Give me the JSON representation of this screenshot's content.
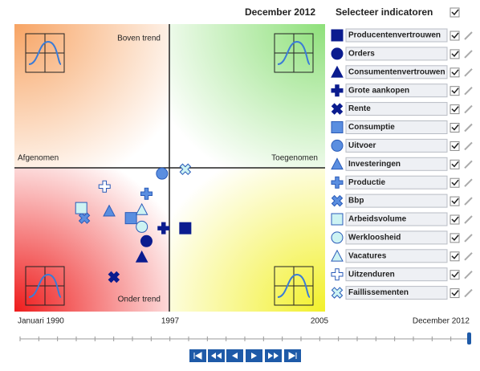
{
  "header": {
    "date": "December 2012",
    "select_title": "Selecteer indicatoren"
  },
  "plot": {
    "xlim": [
      -1,
      1
    ],
    "ylim": [
      -1,
      1
    ],
    "labels": {
      "top": "Boven trend",
      "bottom": "Onder trend",
      "left": "Afgenomen",
      "right": "Toegenomen"
    }
  },
  "indicators": [
    {
      "name": "Producentenvertrouwen",
      "shape": "square",
      "color": "#0b1c8f",
      "x": 0.1,
      "y": -0.42
    },
    {
      "name": "Orders",
      "shape": "circle",
      "color": "#0b1c8f",
      "x": -0.15,
      "y": -0.51
    },
    {
      "name": "Consumentenvertrouwen",
      "shape": "triangle",
      "color": "#0b1c8f",
      "x": -0.18,
      "y": -0.62
    },
    {
      "name": "Grote aankopen",
      "shape": "plus",
      "color": "#0b1c8f",
      "x": -0.04,
      "y": -0.42
    },
    {
      "name": "Rente",
      "shape": "cross",
      "color": "#0b1c8f",
      "x": -0.36,
      "y": -0.76
    },
    {
      "name": "Consumptie",
      "shape": "square",
      "color": "#5a8ee0",
      "x": -0.25,
      "y": -0.35
    },
    {
      "name": "Uitvoer",
      "shape": "circle",
      "color": "#5a8ee0",
      "x": -0.05,
      "y": -0.04
    },
    {
      "name": "Investeringen",
      "shape": "triangle",
      "color": "#5a8ee0",
      "x": -0.39,
      "y": -0.3
    },
    {
      "name": "Productie",
      "shape": "plus",
      "color": "#5a8ee0",
      "x": -0.15,
      "y": -0.18
    },
    {
      "name": "Bbp",
      "shape": "cross",
      "color": "#5a8ee0",
      "x": -0.55,
      "y": -0.35
    },
    {
      "name": "Arbeidsvolume",
      "shape": "square",
      "color": "#cdf3f3",
      "x": -0.57,
      "y": -0.28
    },
    {
      "name": "Werkloosheid",
      "shape": "circle",
      "color": "#cdf3f3",
      "x": -0.18,
      "y": -0.41
    },
    {
      "name": "Vacatures",
      "shape": "triangle",
      "color": "#cdf3f3",
      "x": -0.18,
      "y": -0.29
    },
    {
      "name": "Uitzenduren",
      "shape": "plus",
      "color": "#ffffff",
      "x": -0.42,
      "y": -0.13
    },
    {
      "name": "Faillissementen",
      "shape": "cross",
      "color": "#cdf3f3",
      "x": 0.1,
      "y": -0.01
    }
  ],
  "timeline": {
    "labels": [
      "Januari 1990",
      "1997",
      "2005",
      "December 2012"
    ]
  }
}
